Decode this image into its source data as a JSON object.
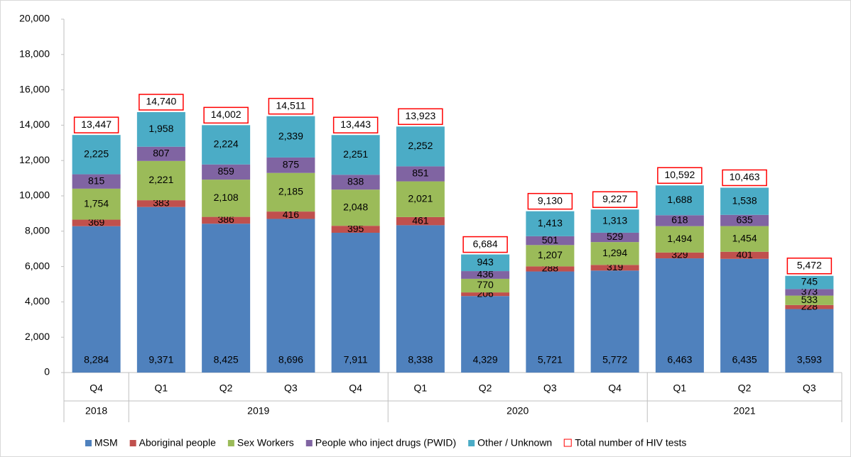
{
  "chart_data": {
    "type": "stacked_bar",
    "categories": [
      "Q4",
      "Q1",
      "Q2",
      "Q3",
      "Q4",
      "Q1",
      "Q2",
      "Q3",
      "Q4",
      "Q1",
      "Q2",
      "Q3"
    ],
    "category_groups": [
      "2018",
      "2019",
      "2019",
      "2019",
      "2019",
      "2020",
      "2020",
      "2020",
      "2020",
      "2021",
      "2021",
      "2021"
    ],
    "series": [
      {
        "name": "MSM",
        "color": "#4f81bd",
        "values": [
          8284,
          9371,
          8425,
          8696,
          7911,
          8338,
          4329,
          5721,
          5772,
          6463,
          6435,
          3593
        ],
        "value_labels": [
          "8,284",
          "9,371",
          "8,425",
          "8,696",
          "7,911",
          "8,338",
          "4,329",
          "5,721",
          "5,772",
          "6,463",
          "6,435",
          "3,593"
        ]
      },
      {
        "name": "Aboriginal people",
        "color": "#c0504d",
        "values": [
          369,
          383,
          386,
          416,
          395,
          461,
          206,
          288,
          319,
          329,
          401,
          228
        ]
      },
      {
        "name": "Sex Workers",
        "color": "#9bbb59",
        "values": [
          1754,
          2221,
          2108,
          2185,
          2048,
          2021,
          770,
          1207,
          1294,
          1494,
          1454,
          533
        ],
        "value_labels": [
          "1,754",
          "2,221",
          "2,108",
          "2,185",
          "2,048",
          "2,021",
          "770",
          "1,207",
          "1,294",
          "1,494",
          "1,454",
          "533"
        ]
      },
      {
        "name": "People who inject drugs (PWID)",
        "color": "#8064a2",
        "values": [
          815,
          807,
          859,
          875,
          838,
          851,
          436,
          501,
          529,
          618,
          635,
          373
        ]
      },
      {
        "name": "Other / Unknown",
        "color": "#4bacc6",
        "values": [
          2225,
          1958,
          2224,
          2339,
          2251,
          2252,
          943,
          1413,
          1313,
          1688,
          1538,
          745
        ],
        "value_labels": [
          "2,225",
          "1,958",
          "2,224",
          "2,339",
          "2,251",
          "2,252",
          "943",
          "1,413",
          "1,313",
          "1,688",
          "1,538",
          "745"
        ]
      }
    ],
    "totals": {
      "name": "Total number of HIV tests",
      "color": "#ff0000",
      "values": [
        13447,
        14740,
        14002,
        14511,
        13443,
        13923,
        6684,
        9130,
        9227,
        10592,
        10463,
        5472
      ],
      "value_labels": [
        "13,447",
        "14,740",
        "14,002",
        "14,511",
        "13,443",
        "13,923",
        "6,684",
        "9,130",
        "9,227",
        "10,592",
        "10,463",
        "5,472"
      ]
    },
    "ylim": [
      0,
      20000
    ],
    "yticks": [
      0,
      {
        "value": 2000,
        "label": "2,000"
      },
      {
        "value": 4000,
        "label": "4,000"
      },
      {
        "value": 6000,
        "label": "6,000"
      },
      {
        "value": 8000,
        "label": "8,000"
      },
      {
        "value": 10000,
        "label": "10,000"
      },
      {
        "value": 12000,
        "label": "12,000"
      },
      {
        "value": 14000,
        "label": "14,000"
      },
      {
        "value": 16000,
        "label": "16,000"
      },
      {
        "value": 18000,
        "label": "18,000"
      },
      {
        "value": 20000,
        "label": "20,000"
      }
    ],
    "grid": false
  }
}
